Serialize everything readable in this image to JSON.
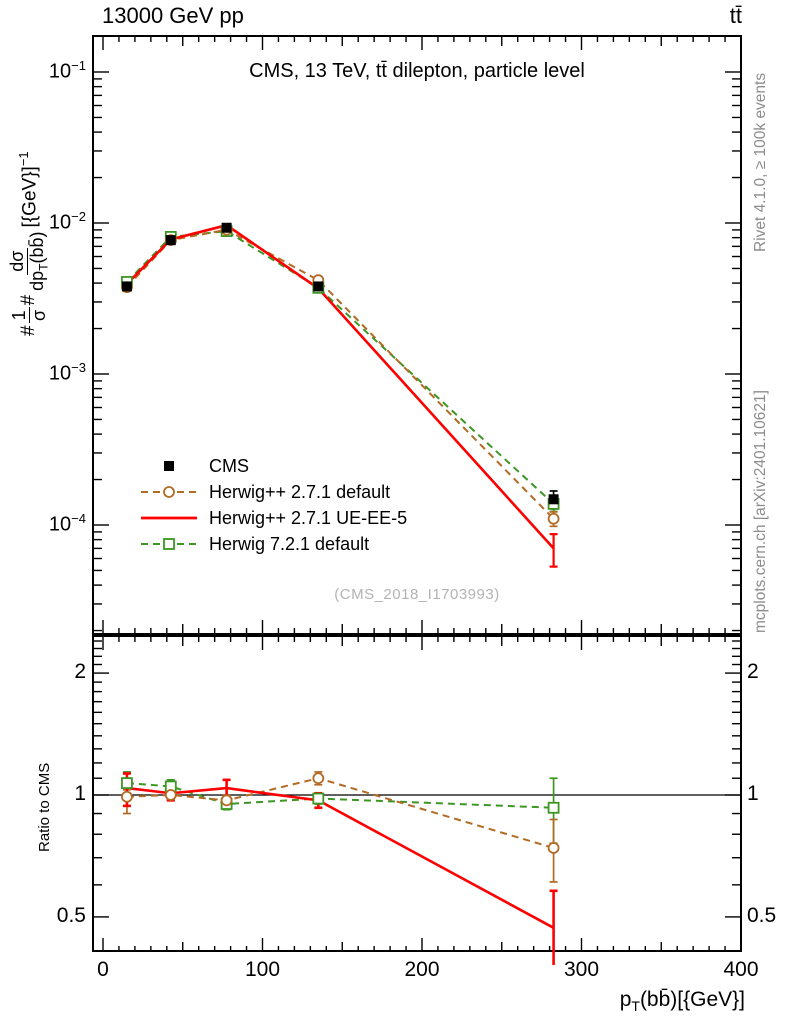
{
  "header": {
    "left": "13000 GeV pp",
    "right": "tt̄"
  },
  "title": "CMS, 13 TeV, tt̄ dilepton, particle level",
  "watermark": "(CMS_2018_I1703993)",
  "side_notes": {
    "top": "Rivet 4.1.0, ≥ 100k events",
    "bottom": "mcplots.cern.ch [arXiv:2401.10621]"
  },
  "axes": {
    "y_label": {
      "hash1": "#",
      "frac1_num": "1",
      "frac1_den": "σ",
      "hash2": "#",
      "frac2_num": "dσ",
      "frac2_den_pre": "dp",
      "frac2_den_sub": "T",
      "frac2_den_post": "(bb̄)",
      "suffix_pre": "[{GeV}]",
      "suffix_sup": "−1"
    },
    "x_label": {
      "pre": "p",
      "sub": "T",
      "post": "(bb̄)[{GeV}]"
    },
    "ratio_label": "Ratio to CMS"
  },
  "chart_data": {
    "type": "line",
    "title": "CMS, 13 TeV, tt̄ dilepton, particle level",
    "xlabel": "pT(bb̄) [GeV]",
    "ylabel": "1/σ dσ/dpT(bb̄) [1/GeV]",
    "x": [
      15,
      42.5,
      77.5,
      135,
      282.5
    ],
    "xlim": [
      0,
      400
    ],
    "x_major_ticks": [
      0,
      100,
      200,
      300,
      400
    ],
    "y_scale": "log",
    "ylim": [
      1.9e-05,
      0.18
    ],
    "y_tick_exponents": [
      -1,
      -2,
      -3,
      -4
    ],
    "ratio_scale": "log",
    "ratio_lim": [
      0.41,
      2.48
    ],
    "ratio_ticks": [
      2,
      1,
      0.5
    ],
    "grid": false,
    "legend_position": "inside-left-middle",
    "series": [
      {
        "name": "CMS",
        "color": "#000000",
        "marker": "square-filled",
        "line": "none",
        "values": [
          0.0038,
          0.0077,
          0.0093,
          0.0038,
          0.000148
        ],
        "err": [
          0.0002,
          0.00025,
          0.00025,
          0.00013,
          2e-05
        ],
        "ratio": [
          1,
          1,
          1,
          1,
          1
        ],
        "ratio_err": [
          [
            0,
            0
          ],
          [
            0,
            0
          ],
          [
            0,
            0
          ],
          [
            0,
            0
          ],
          [
            0,
            0
          ]
        ]
      },
      {
        "name": "Herwig++ 2.7.1 default",
        "color": "#b26b24",
        "marker": "circle-open",
        "line": "dashed",
        "values": [
          0.00376,
          0.0077,
          0.00902,
          0.00418,
          0.00011
        ],
        "err": [
          0.00015,
          0.00015,
          0.00015,
          0.0001,
          1.2e-05
        ],
        "ratio": [
          0.99,
          1.0,
          0.97,
          1.1,
          0.74
        ],
        "ratio_err": [
          [
            0.09,
            0.04
          ],
          [
            0.03,
            0.03
          ],
          [
            0.03,
            0.03
          ],
          [
            0.04,
            0.04
          ],
          [
            0.13,
            0.13
          ]
        ]
      },
      {
        "name": "Herwig++ 2.7.1 UE-EE-5",
        "color": "#ff0000",
        "marker": "none",
        "line": "solid",
        "values": [
          0.00395,
          0.00778,
          0.00967,
          0.00369,
          7e-05
        ],
        "err": [
          0.00015,
          0.00015,
          0.00015,
          0.0001,
          1.7e-05
        ],
        "ratio": [
          1.04,
          1.01,
          1.04,
          0.97,
          0.47
        ],
        "ratio_err": [
          [
            0.1,
            0.09
          ],
          [
            0.04,
            0.04
          ],
          [
            0.05,
            0.05
          ],
          [
            0.04,
            0.04
          ],
          [
            0.14,
            0.11
          ]
        ]
      },
      {
        "name": "Herwig 7.2.1 default",
        "color": "#3c9623",
        "marker": "square-open",
        "line": "dashed",
        "values": [
          0.00407,
          0.00809,
          0.00884,
          0.00372,
          0.000138
        ],
        "err": [
          0.00015,
          0.00015,
          0.00015,
          0.0001,
          1.5e-05
        ],
        "ratio": [
          1.07,
          1.05,
          0.95,
          0.98,
          0.93
        ],
        "ratio_err": [
          [
            0.07,
            0.07
          ],
          [
            0.04,
            0.04
          ],
          [
            0.03,
            0.03
          ],
          [
            0.03,
            0.03
          ],
          [
            0.17,
            0.17
          ]
        ]
      }
    ]
  }
}
